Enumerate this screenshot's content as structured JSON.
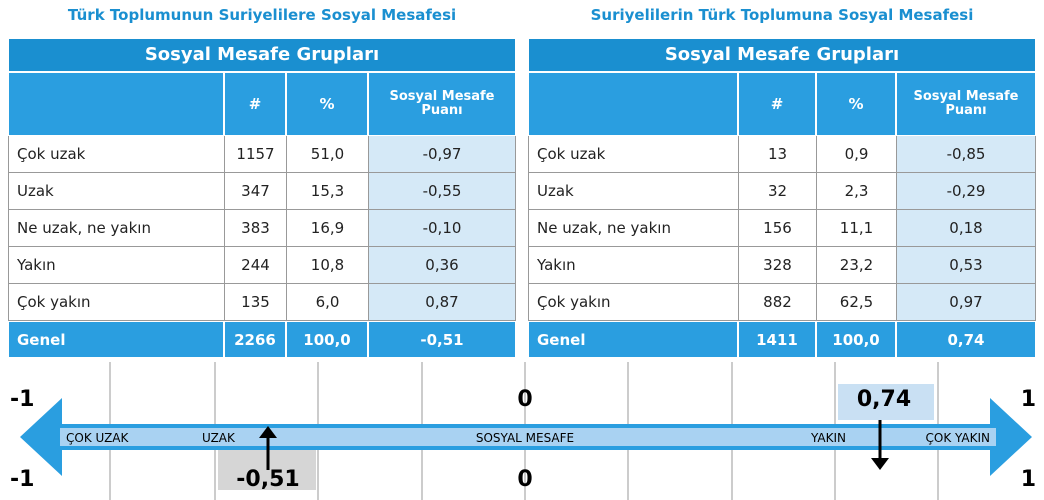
{
  "tables": [
    {
      "title": "Türk Toplumunun Suriyelilere Sosyal Mesafesi",
      "group_header": "Sosyal Mesafe Grupları",
      "columns": [
        "#",
        "%",
        "Sosyal Mesafe Puanı"
      ],
      "rows": [
        [
          "Çok uzak",
          "1157",
          "51,0",
          "-0,97"
        ],
        [
          "Uzak",
          "347",
          "15,3",
          "-0,55"
        ],
        [
          "Ne uzak, ne yakın",
          "383",
          "16,9",
          "-0,10"
        ],
        [
          "Yakın",
          "244",
          "10,8",
          "0,36"
        ],
        [
          "Çok yakın",
          "135",
          "6,0",
          "0,87"
        ]
      ],
      "total": [
        "Genel",
        "2266",
        "100,0",
        "-0,51"
      ]
    },
    {
      "title": "Suriyelilerin Türk Toplumuna Sosyal Mesafesi",
      "group_header": "Sosyal Mesafe Grupları",
      "columns": [
        "#",
        "%",
        "Sosyal Mesafe Puanı"
      ],
      "rows": [
        [
          "Çok uzak",
          "13",
          "0,9",
          "-0,85"
        ],
        [
          "Uzak",
          "32",
          "2,3",
          "-0,29"
        ],
        [
          "Ne uzak, ne yakın",
          "156",
          "11,1",
          "0,18"
        ],
        [
          "Yakın",
          "328",
          "23,2",
          "0,53"
        ],
        [
          "Çok yakın",
          "882",
          "62,5",
          "0,97"
        ]
      ],
      "total": [
        "Genel",
        "1411",
        "100,0",
        "0,74"
      ]
    }
  ],
  "scale": {
    "top_labels": [
      "-1",
      "0",
      "0,74",
      "1"
    ],
    "bottom_labels": [
      "-1",
      "-0,51",
      "0",
      "1"
    ],
    "arrow_labels": [
      "ÇOK UZAK",
      "UZAK",
      "SOSYAL MESAFE",
      "YAKIN",
      "ÇOK YAKIN"
    ]
  }
}
